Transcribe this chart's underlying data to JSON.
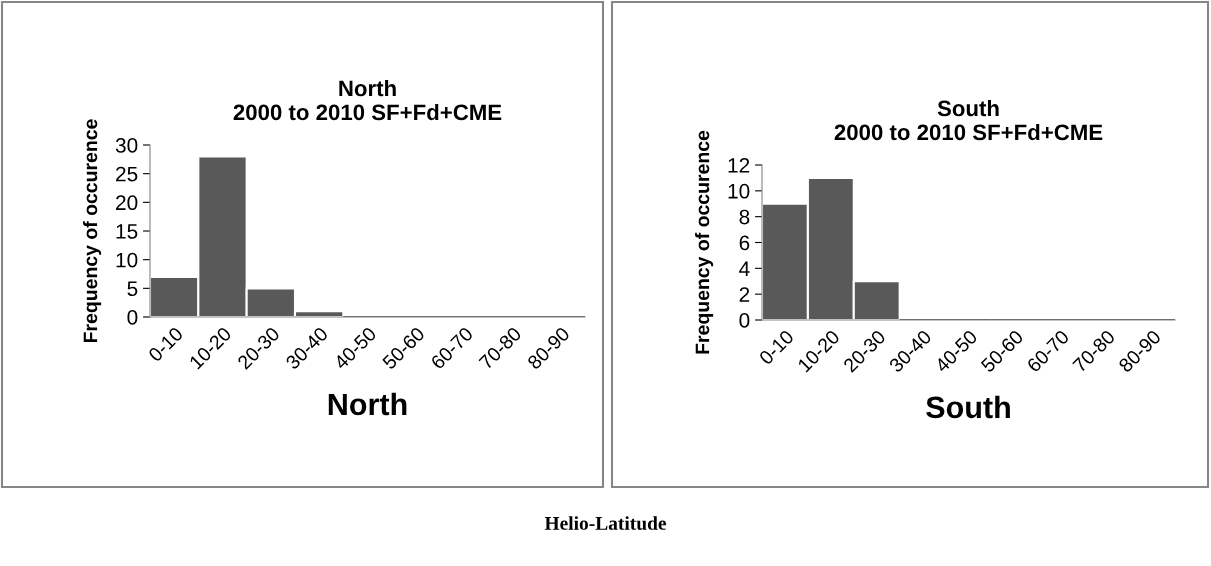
{
  "chart_data": [
    {
      "type": "bar",
      "title": "North\n2000 to 2010 SF+Fd+CME",
      "xlabel": "North",
      "ylabel": "Frequency of occurence",
      "categories": [
        "0-10",
        "10-20",
        "20-30",
        "30-40",
        "40-50",
        "50-60",
        "60-70",
        "70-80",
        "80-90"
      ],
      "values": [
        7,
        28,
        5,
        1,
        0,
        0,
        0,
        0,
        0
      ],
      "color": "#595959",
      "ylim": [
        0,
        30
      ],
      "yticks": [
        0,
        5,
        10,
        15,
        20,
        25,
        30
      ],
      "grid": false,
      "legend": false,
      "annotations": [
        "Helio-Latitude"
      ]
    },
    {
      "type": "bar",
      "title": "South\n2000 to 2010 SF+Fd+CME",
      "xlabel": "South",
      "ylabel": "Frequency of occurence",
      "categories": [
        "0-10",
        "10-20",
        "20-30",
        "30-40",
        "40-50",
        "50-60",
        "60-70",
        "70-80",
        "80-90"
      ],
      "values": [
        9,
        11,
        3,
        0,
        0,
        0,
        0,
        0,
        0
      ],
      "color": "#595959",
      "ylim": [
        0,
        12
      ],
      "yticks": [
        0,
        2,
        4,
        6,
        8,
        10,
        12
      ],
      "grid": false,
      "legend": false
    }
  ]
}
